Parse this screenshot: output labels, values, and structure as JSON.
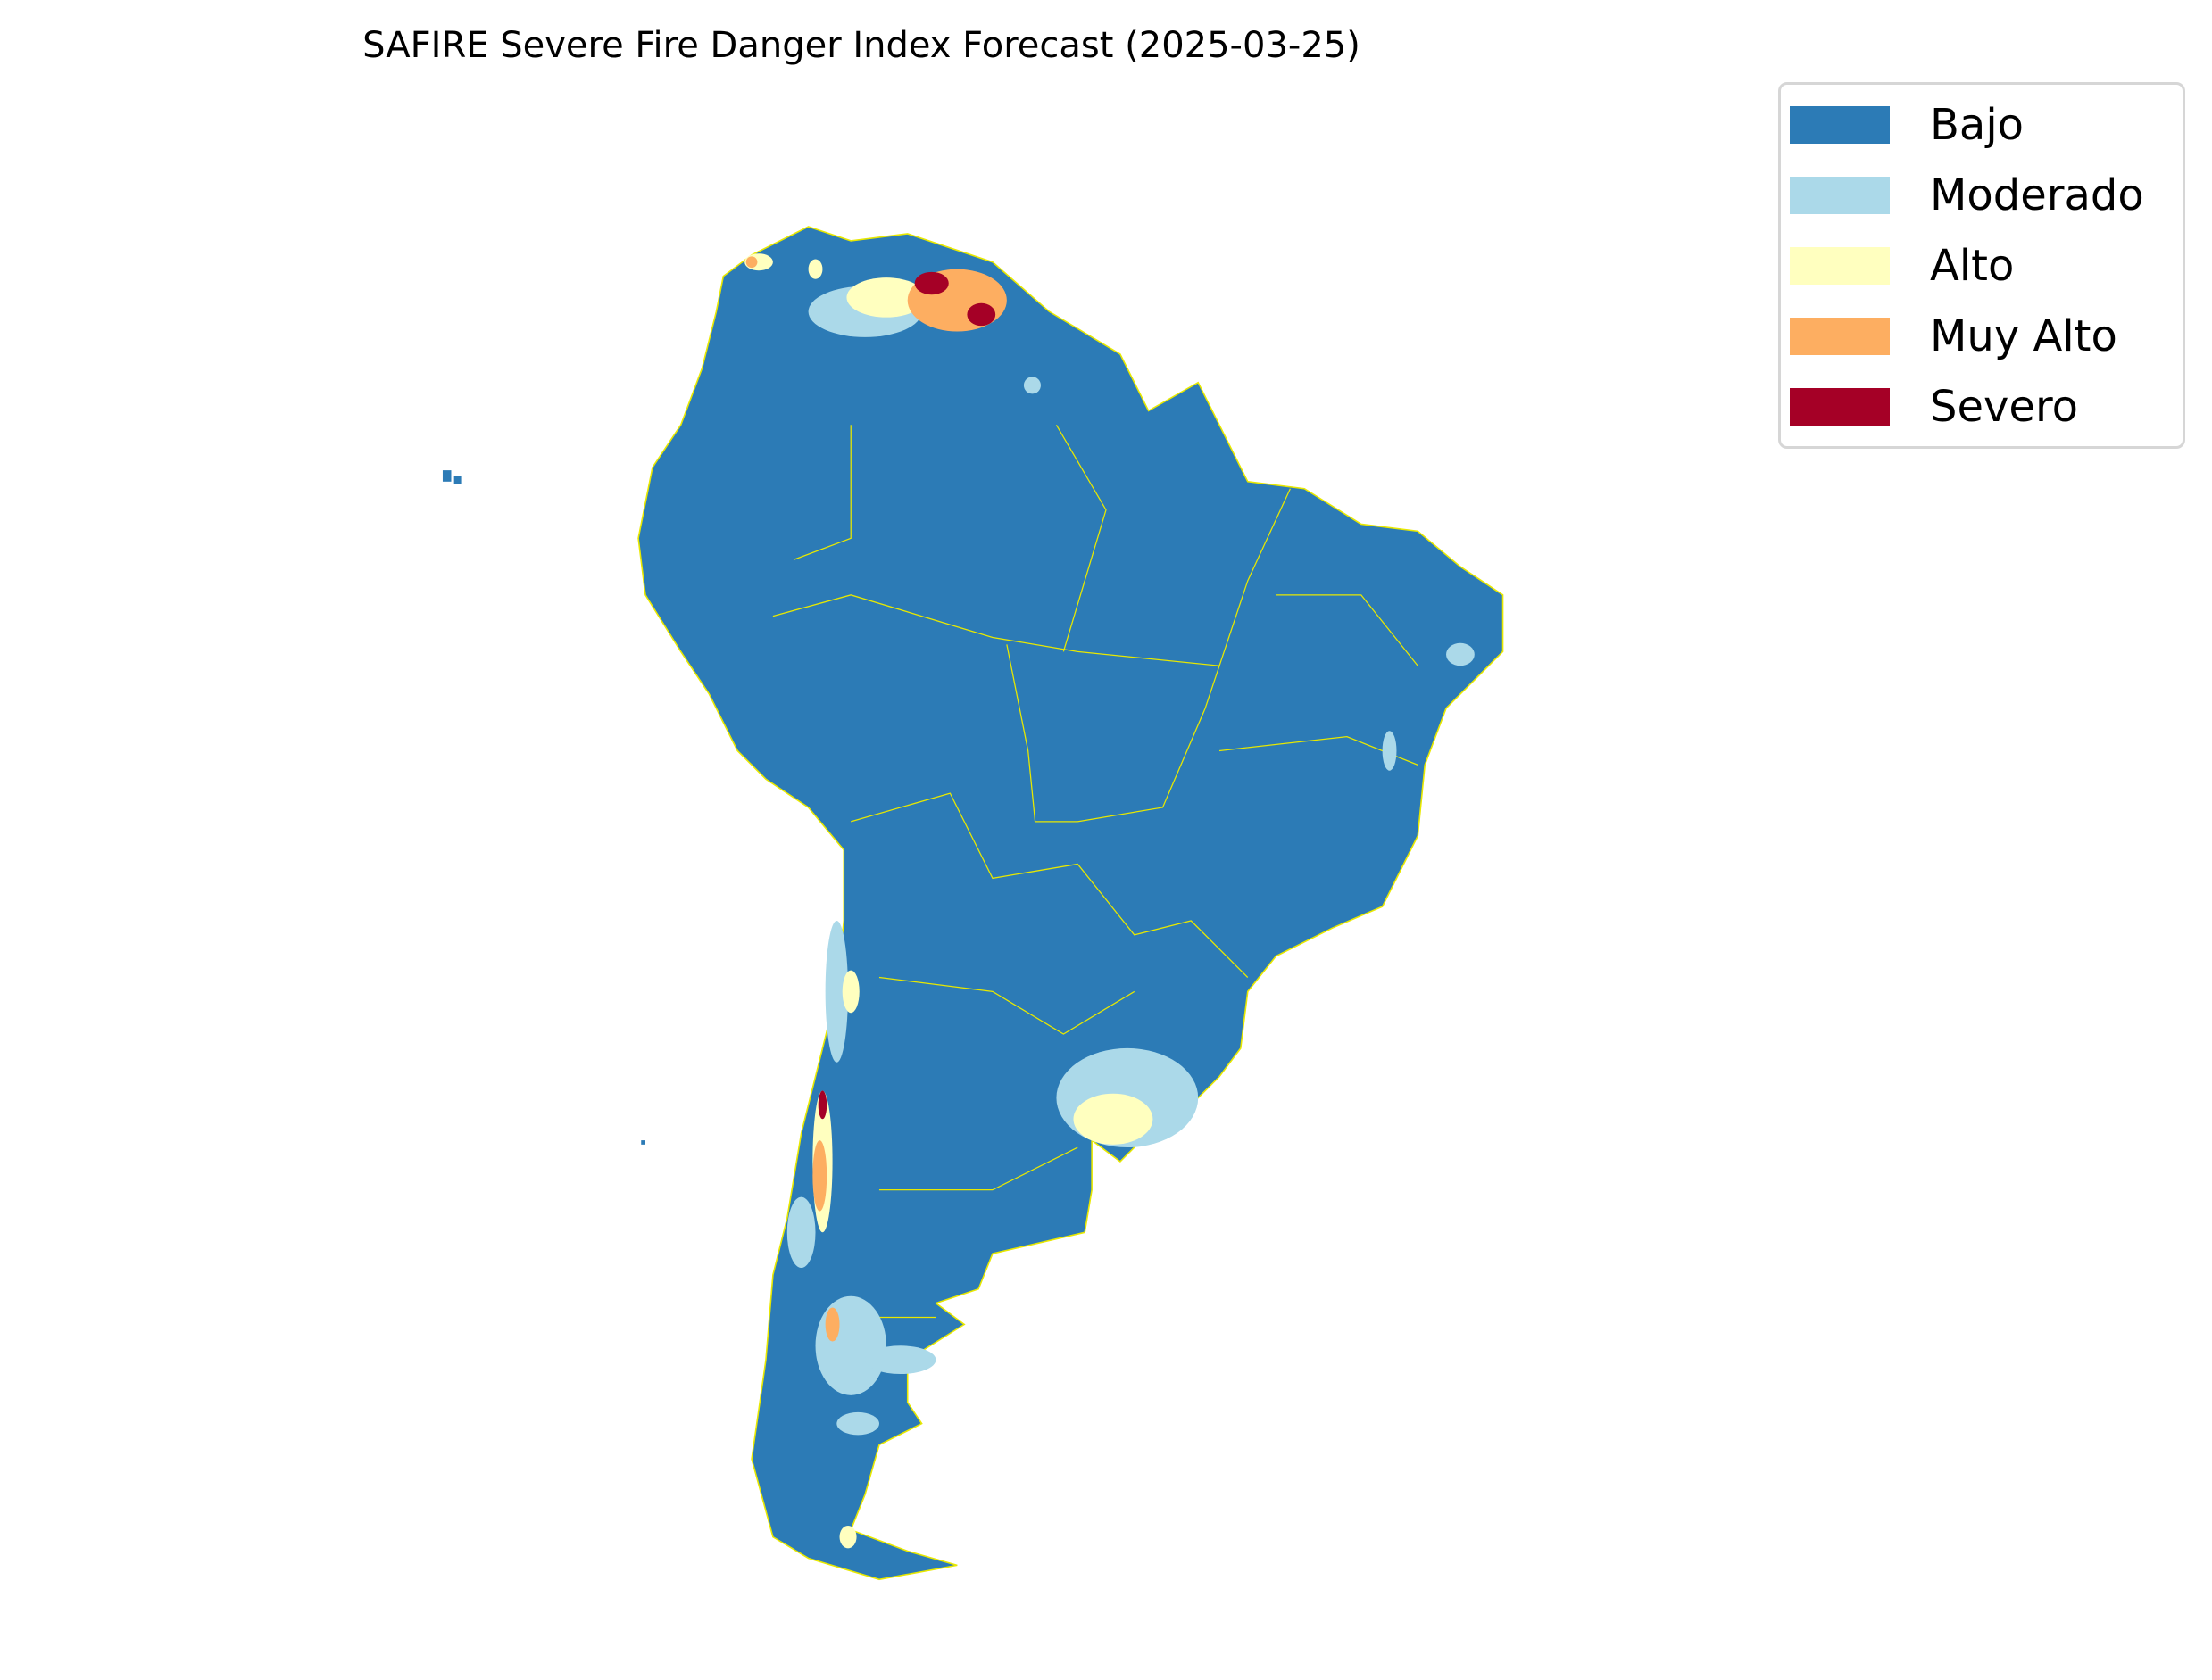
{
  "title": "SAFIRE Severe Fire Danger Index Forecast (2025-03-25)",
  "legend": {
    "placement": "top-right",
    "items": [
      {
        "label": "Bajo",
        "color": "#2c7bb6"
      },
      {
        "label": "Moderado",
        "color": "#abd9e9"
      },
      {
        "label": "Alto",
        "color": "#ffffbf"
      },
      {
        "label": "Muy Alto",
        "color": "#fdae61"
      },
      {
        "label": "Severo",
        "color": "#a50026"
      }
    ]
  },
  "map": {
    "region": "South America",
    "boundary_color": "#e8e800"
  }
}
